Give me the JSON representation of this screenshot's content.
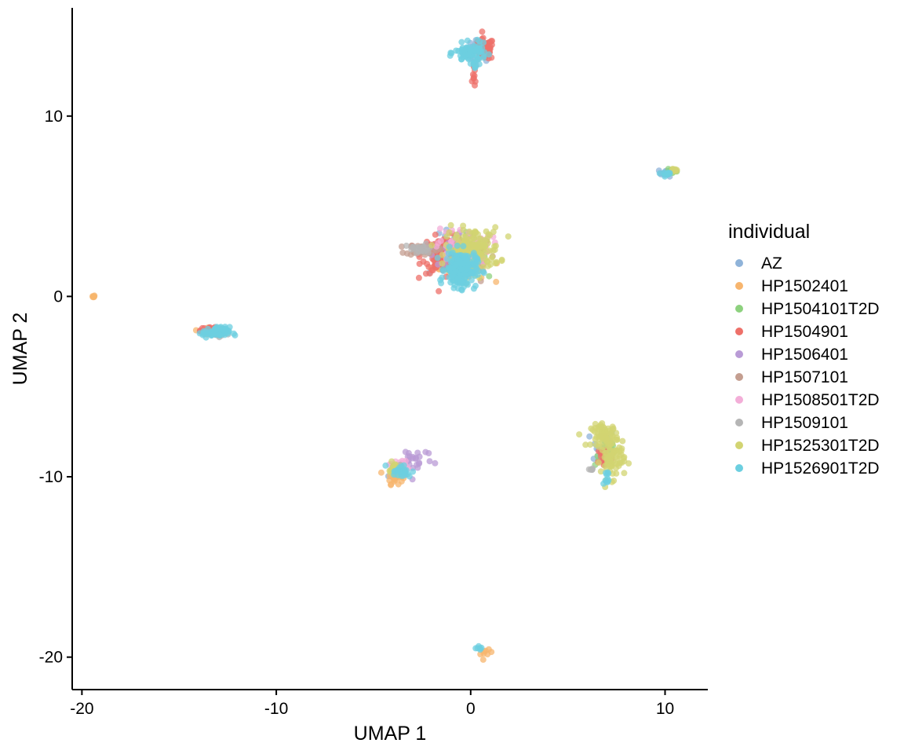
{
  "chart_data": {
    "type": "scatter",
    "title": "",
    "xlabel": "UMAP 1",
    "ylabel": "UMAP 2",
    "xlim": [
      -20.5,
      12.2
    ],
    "ylim": [
      -21.8,
      16.0
    ],
    "x_ticks": [
      -20,
      -10,
      0,
      10
    ],
    "y_ticks": [
      -20,
      -10,
      0,
      10
    ],
    "x_tick_labels": [
      "-20",
      "-10",
      "0",
      "10"
    ],
    "y_tick_labels": [
      "-20",
      "-10",
      "0",
      "10"
    ],
    "grid": false,
    "legend": {
      "title": "individual",
      "placement": "right"
    },
    "series": [
      {
        "name": "AZ",
        "color": "#8fb3d9",
        "clusters": [
          {
            "cx": 0.4,
            "cy": 13.6,
            "sx": 0.35,
            "sy": 0.3,
            "n": 40
          },
          {
            "cx": 10.1,
            "cy": 6.85,
            "sx": 0.2,
            "sy": 0.1,
            "n": 15
          },
          {
            "cx": -0.8,
            "cy": 2.2,
            "sx": 0.7,
            "sy": 0.6,
            "n": 60
          },
          {
            "cx": 6.8,
            "cy": -8.3,
            "sx": 0.3,
            "sy": 0.5,
            "n": 30
          },
          {
            "cx": -3.8,
            "cy": -9.8,
            "sx": 0.2,
            "sy": 0.2,
            "n": 15
          }
        ]
      },
      {
        "name": "HP1502401",
        "color": "#f7b56e",
        "clusters": [
          {
            "cx": -19.4,
            "cy": 0.0,
            "sx": 0.03,
            "sy": 0.03,
            "n": 8
          },
          {
            "cx": -3.9,
            "cy": -10.0,
            "sx": 0.2,
            "sy": 0.2,
            "n": 25
          },
          {
            "cx": -0.6,
            "cy": 2.0,
            "sx": 0.7,
            "sy": 0.6,
            "n": 50
          },
          {
            "cx": -13.4,
            "cy": -1.9,
            "sx": 0.25,
            "sy": 0.1,
            "n": 12
          },
          {
            "cx": 0.8,
            "cy": -19.8,
            "sx": 0.15,
            "sy": 0.1,
            "n": 8
          }
        ]
      },
      {
        "name": "HP1504101T2D",
        "color": "#8dd17e",
        "clusters": [
          {
            "cx": 10.4,
            "cy": 6.95,
            "sx": 0.15,
            "sy": 0.08,
            "n": 12
          },
          {
            "cx": -0.4,
            "cy": 2.4,
            "sx": 0.6,
            "sy": 0.5,
            "n": 50
          },
          {
            "cx": 7.0,
            "cy": -8.6,
            "sx": 0.3,
            "sy": 0.4,
            "n": 20
          }
        ]
      },
      {
        "name": "HP1504901",
        "color": "#ee7069",
        "clusters": [
          {
            "cx": 0.7,
            "cy": 13.7,
            "sx": 0.25,
            "sy": 0.3,
            "n": 70
          },
          {
            "cx": 0.2,
            "cy": 12.2,
            "sx": 0.05,
            "sy": 0.3,
            "n": 10
          },
          {
            "cx": -1.3,
            "cy": 2.3,
            "sx": 0.6,
            "sy": 0.5,
            "n": 160
          },
          {
            "cx": -13.3,
            "cy": -1.9,
            "sx": 0.3,
            "sy": 0.12,
            "n": 25
          },
          {
            "cx": 6.9,
            "cy": -8.9,
            "sx": 0.2,
            "sy": 0.3,
            "n": 30
          }
        ]
      },
      {
        "name": "HP1506401",
        "color": "#b99bd6",
        "clusters": [
          {
            "cx": -2.9,
            "cy": -9.0,
            "sx": 0.5,
            "sy": 0.4,
            "n": 25
          },
          {
            "cx": -0.5,
            "cy": 2.6,
            "sx": 0.7,
            "sy": 0.5,
            "n": 40
          }
        ]
      },
      {
        "name": "HP1507101",
        "color": "#c49e90",
        "clusters": [
          {
            "cx": -2.5,
            "cy": 2.6,
            "sx": 0.4,
            "sy": 0.15,
            "n": 30
          },
          {
            "cx": -0.3,
            "cy": 2.0,
            "sx": 0.7,
            "sy": 0.6,
            "n": 30
          }
        ]
      },
      {
        "name": "HP1508501T2D",
        "color": "#f3aed8",
        "clusters": [
          {
            "cx": -0.4,
            "cy": 2.8,
            "sx": 0.7,
            "sy": 0.5,
            "n": 50
          },
          {
            "cx": -3.7,
            "cy": -9.4,
            "sx": 0.25,
            "sy": 0.2,
            "n": 20
          }
        ]
      },
      {
        "name": "HP1509101",
        "color": "#b5b5b5",
        "clusters": [
          {
            "cx": 6.2,
            "cy": -9.6,
            "sx": 0.05,
            "sy": 0.03,
            "n": 5
          },
          {
            "cx": -2.6,
            "cy": 2.6,
            "sx": 0.35,
            "sy": 0.15,
            "n": 25
          },
          {
            "cx": -13.0,
            "cy": -2.1,
            "sx": 0.3,
            "sy": 0.1,
            "n": 15
          },
          {
            "cx": -3.8,
            "cy": -9.7,
            "sx": 0.2,
            "sy": 0.2,
            "n": 15
          }
        ]
      },
      {
        "name": "HP1525301T2D",
        "color": "#d2d472",
        "clusters": [
          {
            "cx": 0.1,
            "cy": 2.6,
            "sx": 0.7,
            "sy": 0.6,
            "n": 160
          },
          {
            "cx": 6.9,
            "cy": -7.7,
            "sx": 0.35,
            "sy": 0.3,
            "n": 70
          },
          {
            "cx": 7.3,
            "cy": -9.1,
            "sx": 0.3,
            "sy": 0.5,
            "n": 70
          },
          {
            "cx": -3.9,
            "cy": -9.6,
            "sx": 0.15,
            "sy": 0.2,
            "n": 15
          },
          {
            "cx": 10.5,
            "cy": 7.0,
            "sx": 0.12,
            "sy": 0.06,
            "n": 8
          }
        ]
      },
      {
        "name": "HP1526901T2D",
        "color": "#6ccfe0",
        "clusters": [
          {
            "cx": 0.0,
            "cy": 13.5,
            "sx": 0.4,
            "sy": 0.25,
            "n": 80
          },
          {
            "cx": 0.2,
            "cy": 12.7,
            "sx": 0.05,
            "sy": 0.3,
            "n": 8
          },
          {
            "cx": -0.5,
            "cy": 1.5,
            "sx": 0.4,
            "sy": 0.5,
            "n": 200
          },
          {
            "cx": -13.1,
            "cy": -2.0,
            "sx": 0.35,
            "sy": 0.15,
            "n": 60
          },
          {
            "cx": -3.6,
            "cy": -9.7,
            "sx": 0.3,
            "sy": 0.2,
            "n": 25
          },
          {
            "cx": 7.0,
            "cy": -10.1,
            "sx": 0.1,
            "sy": 0.2,
            "n": 10
          },
          {
            "cx": 10.1,
            "cy": 6.8,
            "sx": 0.2,
            "sy": 0.07,
            "n": 12
          },
          {
            "cx": 0.5,
            "cy": -19.5,
            "sx": 0.1,
            "sy": 0.05,
            "n": 6
          }
        ]
      }
    ]
  }
}
